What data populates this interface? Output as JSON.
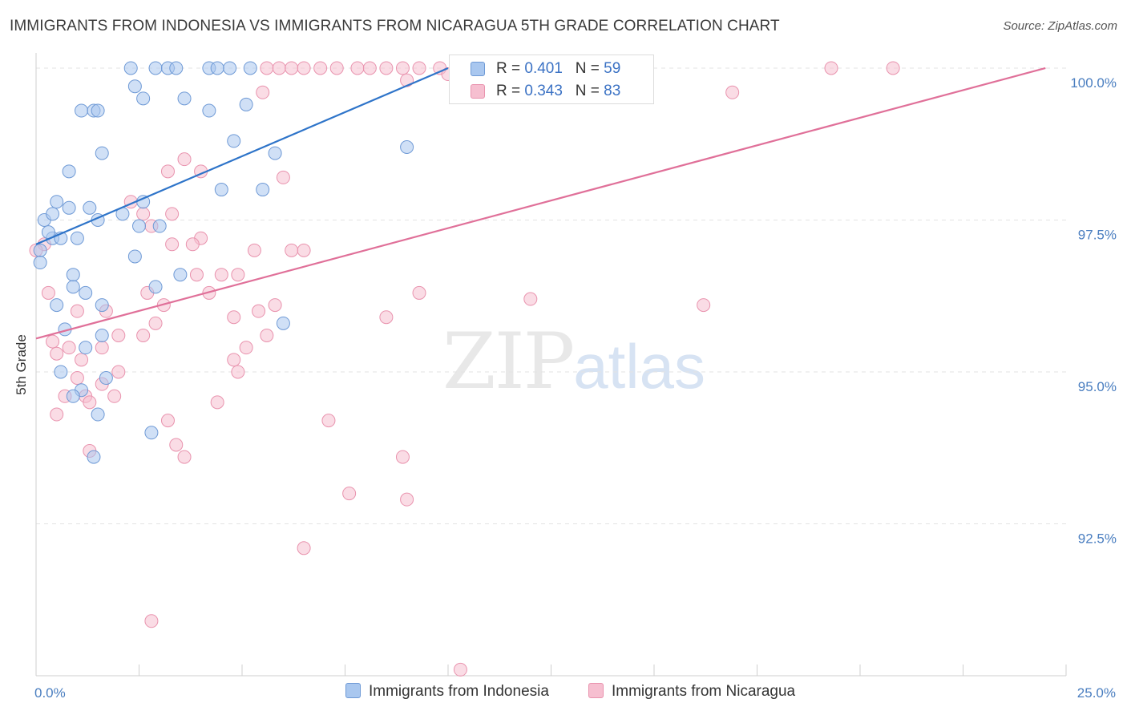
{
  "title": "IMMIGRANTS FROM INDONESIA VS IMMIGRANTS FROM NICARAGUA 5TH GRADE CORRELATION CHART",
  "source": "Source: ZipAtlas.com",
  "watermark": {
    "zip": "ZIP",
    "atlas": "atlas"
  },
  "legend": {
    "rows": [
      {
        "r_label": "R = ",
        "r_value": "0.401",
        "n_label": "N = ",
        "n_value": "59"
      },
      {
        "r_label": "R = ",
        "r_value": "0.343",
        "n_label": "N = ",
        "n_value": "83"
      }
    ]
  },
  "colors": {
    "indonesia_fill": "#a9c7ef",
    "indonesia_stroke": "#6f9ad6",
    "indonesia_line": "#2e74c9",
    "nicaragua_fill": "#f6bfd0",
    "nicaragua_stroke": "#e993ae",
    "nicaragua_line": "#e07099",
    "tick_label": "#4a7ec0",
    "grid": "#e3e3e3"
  },
  "chart_data": {
    "type": "scatter",
    "title": "IMMIGRANTS FROM INDONESIA VS IMMIGRANTS FROM NICARAGUA 5TH GRADE CORRELATION CHART",
    "xlabel": "",
    "ylabel": "5th Grade",
    "xlim": [
      0,
      25
    ],
    "ylim": [
      90.0,
      100.25
    ],
    "x_tick_labels": [
      {
        "value": 0,
        "label": "0.0%"
      },
      {
        "value": 25,
        "label": "25.0%"
      }
    ],
    "y_ticks": [
      {
        "value": 100.0,
        "label": "100.0%"
      },
      {
        "value": 97.5,
        "label": "97.5%"
      },
      {
        "value": 95.0,
        "label": "95.0%"
      },
      {
        "value": 92.5,
        "label": "92.5%"
      }
    ],
    "grid": true,
    "legend_position": "top-center",
    "series": [
      {
        "name": "Immigrants from Indonesia",
        "trend": {
          "x": [
            0.0,
            10.0
          ],
          "y": [
            97.1,
            100.0
          ]
        },
        "points": [
          [
            2.3,
            100.0
          ],
          [
            2.9,
            100.0
          ],
          [
            3.2,
            100.0
          ],
          [
            3.4,
            100.0
          ],
          [
            4.2,
            100.0
          ],
          [
            4.7,
            100.0
          ],
          [
            5.2,
            100.0
          ],
          [
            4.4,
            100.0
          ],
          [
            2.4,
            99.7
          ],
          [
            1.1,
            99.3
          ],
          [
            1.4,
            99.3
          ],
          [
            1.5,
            99.3
          ],
          [
            2.6,
            99.5
          ],
          [
            3.6,
            99.5
          ],
          [
            4.2,
            99.3
          ],
          [
            5.1,
            99.4
          ],
          [
            4.8,
            98.8
          ],
          [
            5.8,
            98.6
          ],
          [
            9.0,
            98.7
          ],
          [
            1.6,
            98.6
          ],
          [
            0.8,
            98.3
          ],
          [
            4.5,
            98.0
          ],
          [
            5.5,
            98.0
          ],
          [
            0.5,
            97.8
          ],
          [
            0.8,
            97.7
          ],
          [
            1.3,
            97.7
          ],
          [
            2.1,
            97.6
          ],
          [
            2.6,
            97.8
          ],
          [
            0.2,
            97.5
          ],
          [
            0.4,
            97.6
          ],
          [
            1.5,
            97.5
          ],
          [
            2.5,
            97.4
          ],
          [
            3.0,
            97.4
          ],
          [
            0.4,
            97.2
          ],
          [
            0.6,
            97.2
          ],
          [
            1.0,
            97.2
          ],
          [
            0.3,
            97.3
          ],
          [
            0.1,
            97.0
          ],
          [
            0.1,
            96.8
          ],
          [
            2.4,
            96.9
          ],
          [
            0.9,
            96.6
          ],
          [
            3.5,
            96.6
          ],
          [
            2.9,
            96.4
          ],
          [
            0.9,
            96.4
          ],
          [
            1.2,
            96.3
          ],
          [
            0.5,
            96.1
          ],
          [
            1.6,
            96.1
          ],
          [
            6.0,
            95.8
          ],
          [
            0.7,
            95.7
          ],
          [
            1.6,
            95.6
          ],
          [
            1.2,
            95.4
          ],
          [
            0.6,
            95.0
          ],
          [
            1.7,
            94.9
          ],
          [
            1.1,
            94.7
          ],
          [
            1.5,
            94.3
          ],
          [
            2.8,
            94.0
          ],
          [
            1.4,
            93.6
          ],
          [
            0.9,
            94.6
          ],
          [
            10.5,
            100.0
          ]
        ]
      },
      {
        "name": "Immigrants from Nicaragua",
        "trend": {
          "x": [
            0.0,
            24.5
          ],
          "y": [
            95.55,
            100.0
          ]
        },
        "points": [
          [
            5.6,
            100.0
          ],
          [
            5.9,
            100.0
          ],
          [
            6.2,
            100.0
          ],
          [
            6.5,
            100.0
          ],
          [
            6.9,
            100.0
          ],
          [
            7.3,
            100.0
          ],
          [
            7.8,
            100.0
          ],
          [
            8.1,
            100.0
          ],
          [
            8.5,
            100.0
          ],
          [
            8.9,
            100.0
          ],
          [
            9.3,
            100.0
          ],
          [
            9.8,
            100.0
          ],
          [
            10.2,
            100.0
          ],
          [
            19.3,
            100.0
          ],
          [
            20.8,
            100.0
          ],
          [
            9.0,
            99.8
          ],
          [
            5.5,
            99.6
          ],
          [
            16.9,
            99.6
          ],
          [
            3.6,
            98.5
          ],
          [
            3.2,
            98.3
          ],
          [
            4.0,
            98.3
          ],
          [
            6.0,
            98.2
          ],
          [
            2.3,
            97.8
          ],
          [
            3.3,
            97.6
          ],
          [
            2.6,
            97.6
          ],
          [
            2.8,
            97.4
          ],
          [
            4.0,
            97.2
          ],
          [
            3.8,
            97.1
          ],
          [
            3.3,
            97.1
          ],
          [
            5.3,
            97.0
          ],
          [
            6.2,
            97.0
          ],
          [
            6.5,
            97.0
          ],
          [
            0.2,
            97.1
          ],
          [
            3.9,
            96.6
          ],
          [
            4.9,
            96.6
          ],
          [
            4.5,
            96.6
          ],
          [
            9.3,
            96.3
          ],
          [
            12.0,
            96.2
          ],
          [
            16.2,
            96.1
          ],
          [
            4.2,
            96.3
          ],
          [
            0.3,
            96.3
          ],
          [
            2.7,
            96.3
          ],
          [
            3.1,
            96.1
          ],
          [
            5.4,
            96.0
          ],
          [
            5.8,
            96.1
          ],
          [
            1.0,
            96.0
          ],
          [
            1.7,
            96.0
          ],
          [
            4.8,
            95.9
          ],
          [
            8.5,
            95.9
          ],
          [
            2.9,
            95.8
          ],
          [
            5.6,
            95.6
          ],
          [
            2.0,
            95.6
          ],
          [
            2.6,
            95.6
          ],
          [
            0.4,
            95.5
          ],
          [
            0.8,
            95.4
          ],
          [
            1.6,
            95.4
          ],
          [
            0.5,
            95.3
          ],
          [
            4.8,
            95.2
          ],
          [
            5.1,
            95.4
          ],
          [
            1.1,
            95.2
          ],
          [
            2.0,
            95.0
          ],
          [
            4.9,
            95.0
          ],
          [
            1.0,
            94.9
          ],
          [
            1.6,
            94.8
          ],
          [
            1.2,
            94.6
          ],
          [
            0.7,
            94.6
          ],
          [
            1.9,
            94.6
          ],
          [
            1.3,
            94.5
          ],
          [
            0.5,
            94.3
          ],
          [
            3.2,
            94.2
          ],
          [
            4.4,
            94.5
          ],
          [
            7.1,
            94.2
          ],
          [
            3.4,
            93.8
          ],
          [
            1.3,
            93.7
          ],
          [
            3.6,
            93.6
          ],
          [
            8.9,
            93.6
          ],
          [
            7.6,
            93.0
          ],
          [
            9.0,
            92.9
          ],
          [
            6.5,
            92.1
          ],
          [
            2.8,
            90.9
          ],
          [
            10.3,
            90.1
          ],
          [
            0.0,
            97.0
          ],
          [
            10.0,
            99.9
          ]
        ]
      }
    ]
  }
}
